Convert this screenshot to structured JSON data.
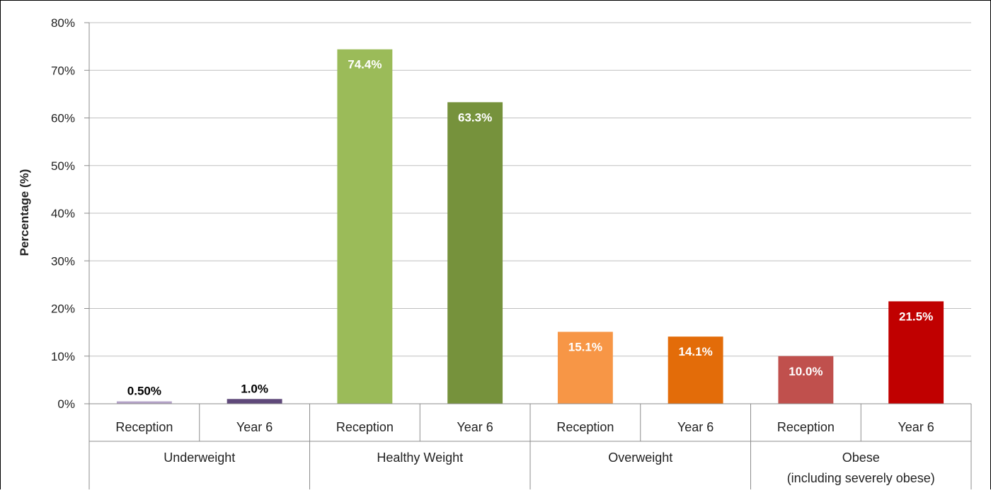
{
  "chart_data": {
    "type": "bar",
    "title": "",
    "xlabel": "",
    "ylabel": "Percentage (%)",
    "ylim": [
      0,
      80
    ],
    "yticks": [
      "0%",
      "10%",
      "20%",
      "30%",
      "40%",
      "50%",
      "60%",
      "70%",
      "80%"
    ],
    "grid": true,
    "legend": "none",
    "groups": [
      {
        "name": "Underweight",
        "bars": [
          {
            "category": "Reception",
            "value": 0.5,
            "label": "0.50%",
            "color": "#b3a2c7",
            "label_color": "#000000"
          },
          {
            "category": "Year 6",
            "value": 1.0,
            "label": "1.0%",
            "color": "#5f497a",
            "label_color": "#000000"
          }
        ]
      },
      {
        "name": "Healthy Weight",
        "bars": [
          {
            "category": "Reception",
            "value": 74.4,
            "label": "74.4%",
            "color": "#9bbb59",
            "label_color": "#ffffff"
          },
          {
            "category": "Year 6",
            "value": 63.3,
            "label": "63.3%",
            "color": "#76923c",
            "label_color": "#ffffff"
          }
        ]
      },
      {
        "name": "Overweight",
        "bars": [
          {
            "category": "Reception",
            "value": 15.1,
            "label": "15.1%",
            "color": "#f79646",
            "label_color": "#ffffff"
          },
          {
            "category": "Year 6",
            "value": 14.1,
            "label": "14.1%",
            "color": "#e36c09",
            "label_color": "#ffffff"
          }
        ]
      },
      {
        "name": "Obese\n(including severely obese)",
        "bars": [
          {
            "category": "Reception",
            "value": 10.0,
            "label": "10.0%",
            "color": "#c0504d",
            "label_color": "#ffffff"
          },
          {
            "category": "Year 6",
            "value": 21.5,
            "label": "21.5%",
            "color": "#c00000",
            "label_color": "#ffffff"
          }
        ]
      }
    ]
  }
}
